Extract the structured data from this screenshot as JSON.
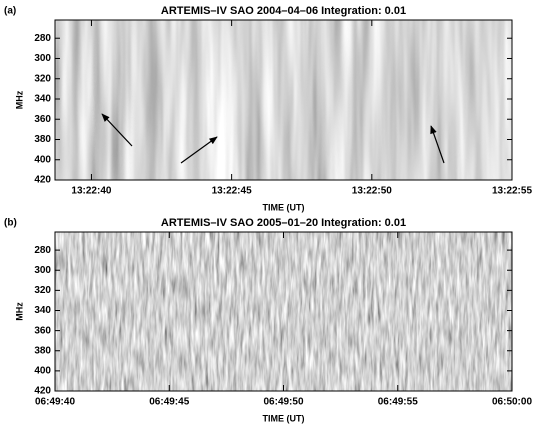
{
  "chart_data": [
    {
      "type": "spectrogram",
      "panel": "(a)",
      "title": "ARTEMIS–IV  SAO 2004–04–06   Integration: 0.01",
      "ylabel": "MHz",
      "xlabel": "TIME (UT)",
      "ylim": [
        262,
        420
      ],
      "yticks": [
        280,
        300,
        320,
        340,
        360,
        380,
        400,
        420
      ],
      "xlim": [
        "13:22:38.7",
        "13:22:55"
      ],
      "xticks": [
        "13:22:40",
        "13:22:45",
        "13:22:50",
        "13:22:55"
      ]
    },
    {
      "type": "spectrogram",
      "panel": "(b)",
      "title": "ARTEMIS–IV  SAO 2005–01–20   Integration: 0.01",
      "ylabel": "MHz",
      "xlabel": "TIME (UT)",
      "ylim": [
        262,
        420
      ],
      "yticks": [
        280,
        300,
        320,
        340,
        360,
        380,
        400,
        420
      ],
      "xlim": [
        "06:49:40",
        "06:50:00"
      ],
      "xticks": [
        "06:49:40",
        "06:49:45",
        "06:49:50",
        "06:49:55",
        "06:50:00"
      ]
    }
  ]
}
